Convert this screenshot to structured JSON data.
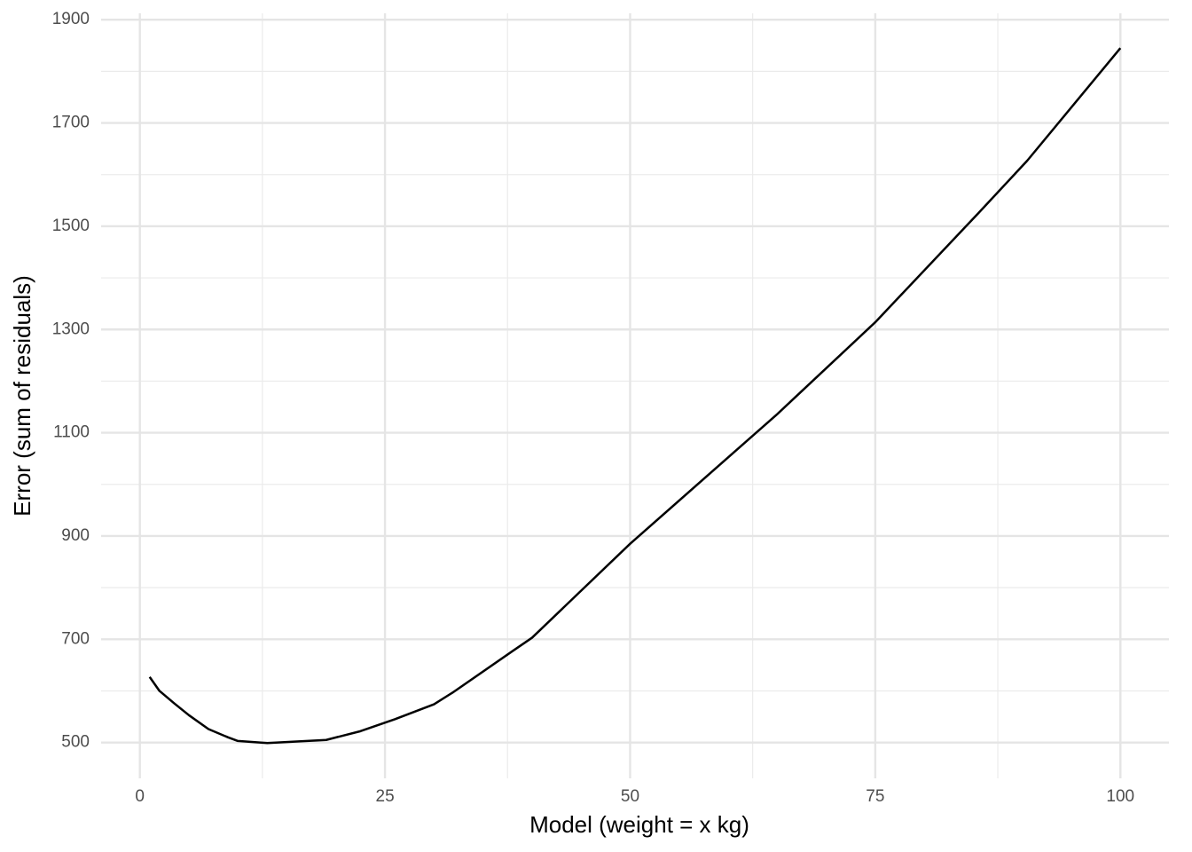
{
  "chart_data": {
    "type": "line",
    "x_label": "Model (weight = x kg)",
    "y_label": "Error (sum of residuals)",
    "x": [
      1,
      2,
      3.5,
      5,
      7,
      9,
      10,
      13,
      16,
      19,
      22.5,
      26,
      30,
      32,
      38,
      40,
      50,
      65,
      75,
      85.5,
      90.5,
      100
    ],
    "series": [
      {
        "color": "#000000",
        "values": [
          627,
          600,
          576,
          553,
          526,
          510,
          503,
          499,
          502,
          505,
          522,
          545,
          574,
          598,
          677,
          703,
          885,
          1136,
          1314,
          1525,
          1627,
          1845
        ]
      }
    ],
    "xlim": [
      -3.95,
      104.95
    ],
    "xticks": [
      0,
      25,
      50,
      75,
      100
    ],
    "x_minor_grid": [
      12.5,
      37.5,
      62.5,
      87.5
    ],
    "ylim": [
      430.65,
      1912.35
    ],
    "yticks": [
      500,
      700,
      900,
      1100,
      1300,
      1500,
      1700,
      1900
    ],
    "y_minor_grid": [
      600,
      800,
      1000,
      1200,
      1400,
      1600,
      1800
    ],
    "grid": true
  }
}
